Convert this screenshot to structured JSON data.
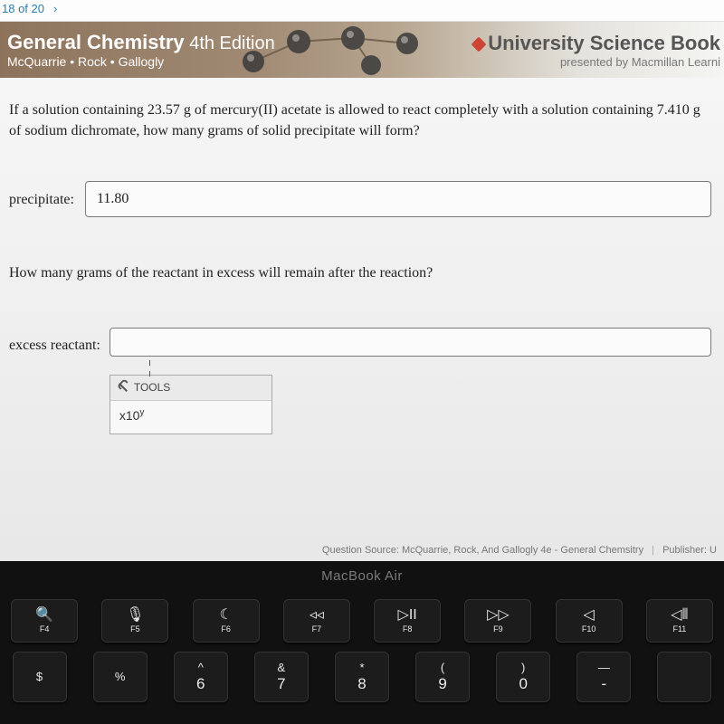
{
  "topbar": {
    "progress": "18 of 20",
    "chev": "›"
  },
  "banner": {
    "title_bold": "General Chemistry",
    "title_ed": " 4th Edition",
    "authors": "McQuarrie • Rock • Gallogly",
    "usb": "University Science Book",
    "presented": "presented by Macmillan Learni"
  },
  "question1": "If a solution containing 23.57 g of mercury(II) acetate is allowed to react completely with a solution containing 7.410 g of sodium dichromate, how many grams of solid precipitate will form?",
  "precipitate": {
    "label": "precipitate:",
    "value": "11.80"
  },
  "question2": "How many grams of the reactant in excess will remain after the reaction?",
  "excess": {
    "label": "excess reactant:",
    "value": ""
  },
  "tools": {
    "head": "TOOLS",
    "sci_prefix": "x10",
    "sci_sup": "y"
  },
  "footer": {
    "src": "Question Source: McQuarrie, Rock, And Gallogly 4e - General Chemsitry",
    "pub_label": "Publisher: U"
  },
  "laptop": {
    "model": "MacBook Air",
    "fn": [
      {
        "glyph": "🔍",
        "label": "F4"
      },
      {
        "glyph": "🎙",
        "label": "F5"
      },
      {
        "glyph": "☾",
        "label": "F6"
      },
      {
        "glyph": "◃◃",
        "label": "F7"
      },
      {
        "glyph": "▷II",
        "label": "F8"
      },
      {
        "glyph": "▷▷",
        "label": "F9"
      },
      {
        "glyph": "◁",
        "label": "F10"
      },
      {
        "glyph": "◁⦀",
        "label": "F11"
      }
    ],
    "row2": [
      {
        "top": "$",
        "bot": ""
      },
      {
        "top": "%",
        "bot": ""
      },
      {
        "top": "^",
        "bot": "6"
      },
      {
        "top": "&",
        "bot": "7"
      },
      {
        "top": "*",
        "bot": "8"
      },
      {
        "top": "(",
        "bot": "9"
      },
      {
        "top": ")",
        "bot": "0"
      },
      {
        "top": "—",
        "bot": "-"
      },
      {
        "top": "",
        "bot": ""
      }
    ]
  },
  "colors": {
    "banner_start": "#8d735c",
    "accent_red": "#c43",
    "link": "#2a7db0",
    "border": "#7a7a7a"
  }
}
